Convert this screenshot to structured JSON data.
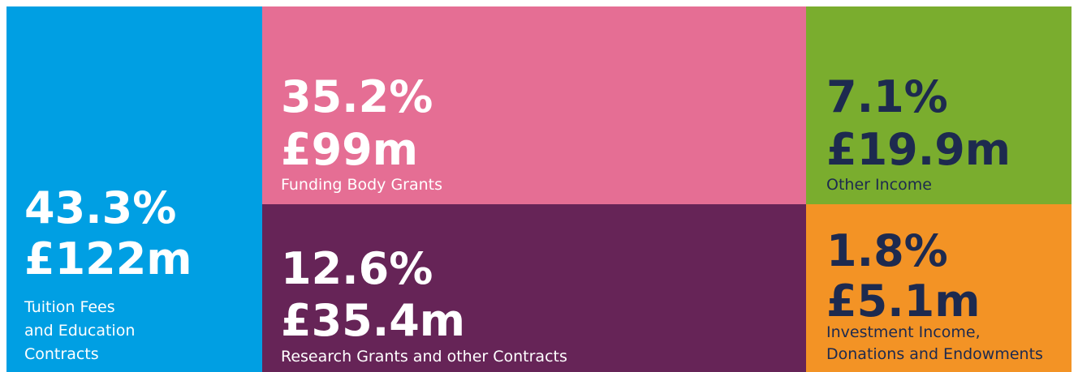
{
  "tiles": [
    {
      "percent": "43.3%",
      "amount": "£122m",
      "label": [
        "Tuition Fees",
        "and Education",
        "Contracts"
      ],
      "color": "#009fe3",
      "text_color": "#ffffff"
    },
    {
      "percent": "35.2%",
      "amount": "£99m",
      "label": [
        "Funding Body Grants"
      ],
      "color": "#e56e94",
      "text_color": "#ffffff"
    },
    {
      "percent": "12.6%",
      "amount": "£35.4m",
      "label": [
        "Research Grants and other Contracts"
      ],
      "color": "#662457",
      "text_color": "#ffffff"
    },
    {
      "percent": "7.1%",
      "amount": "£19.9m",
      "label": [
        "Other Income"
      ],
      "color": "#7aad2e",
      "text_color": "#1d2a4f"
    },
    {
      "percent": "1.8%",
      "amount": "£5.1m",
      "label": [
        "Investment Income,",
        "Donations and Endowments"
      ],
      "color": "#f39325",
      "text_color": "#1d2a4f"
    }
  ]
}
